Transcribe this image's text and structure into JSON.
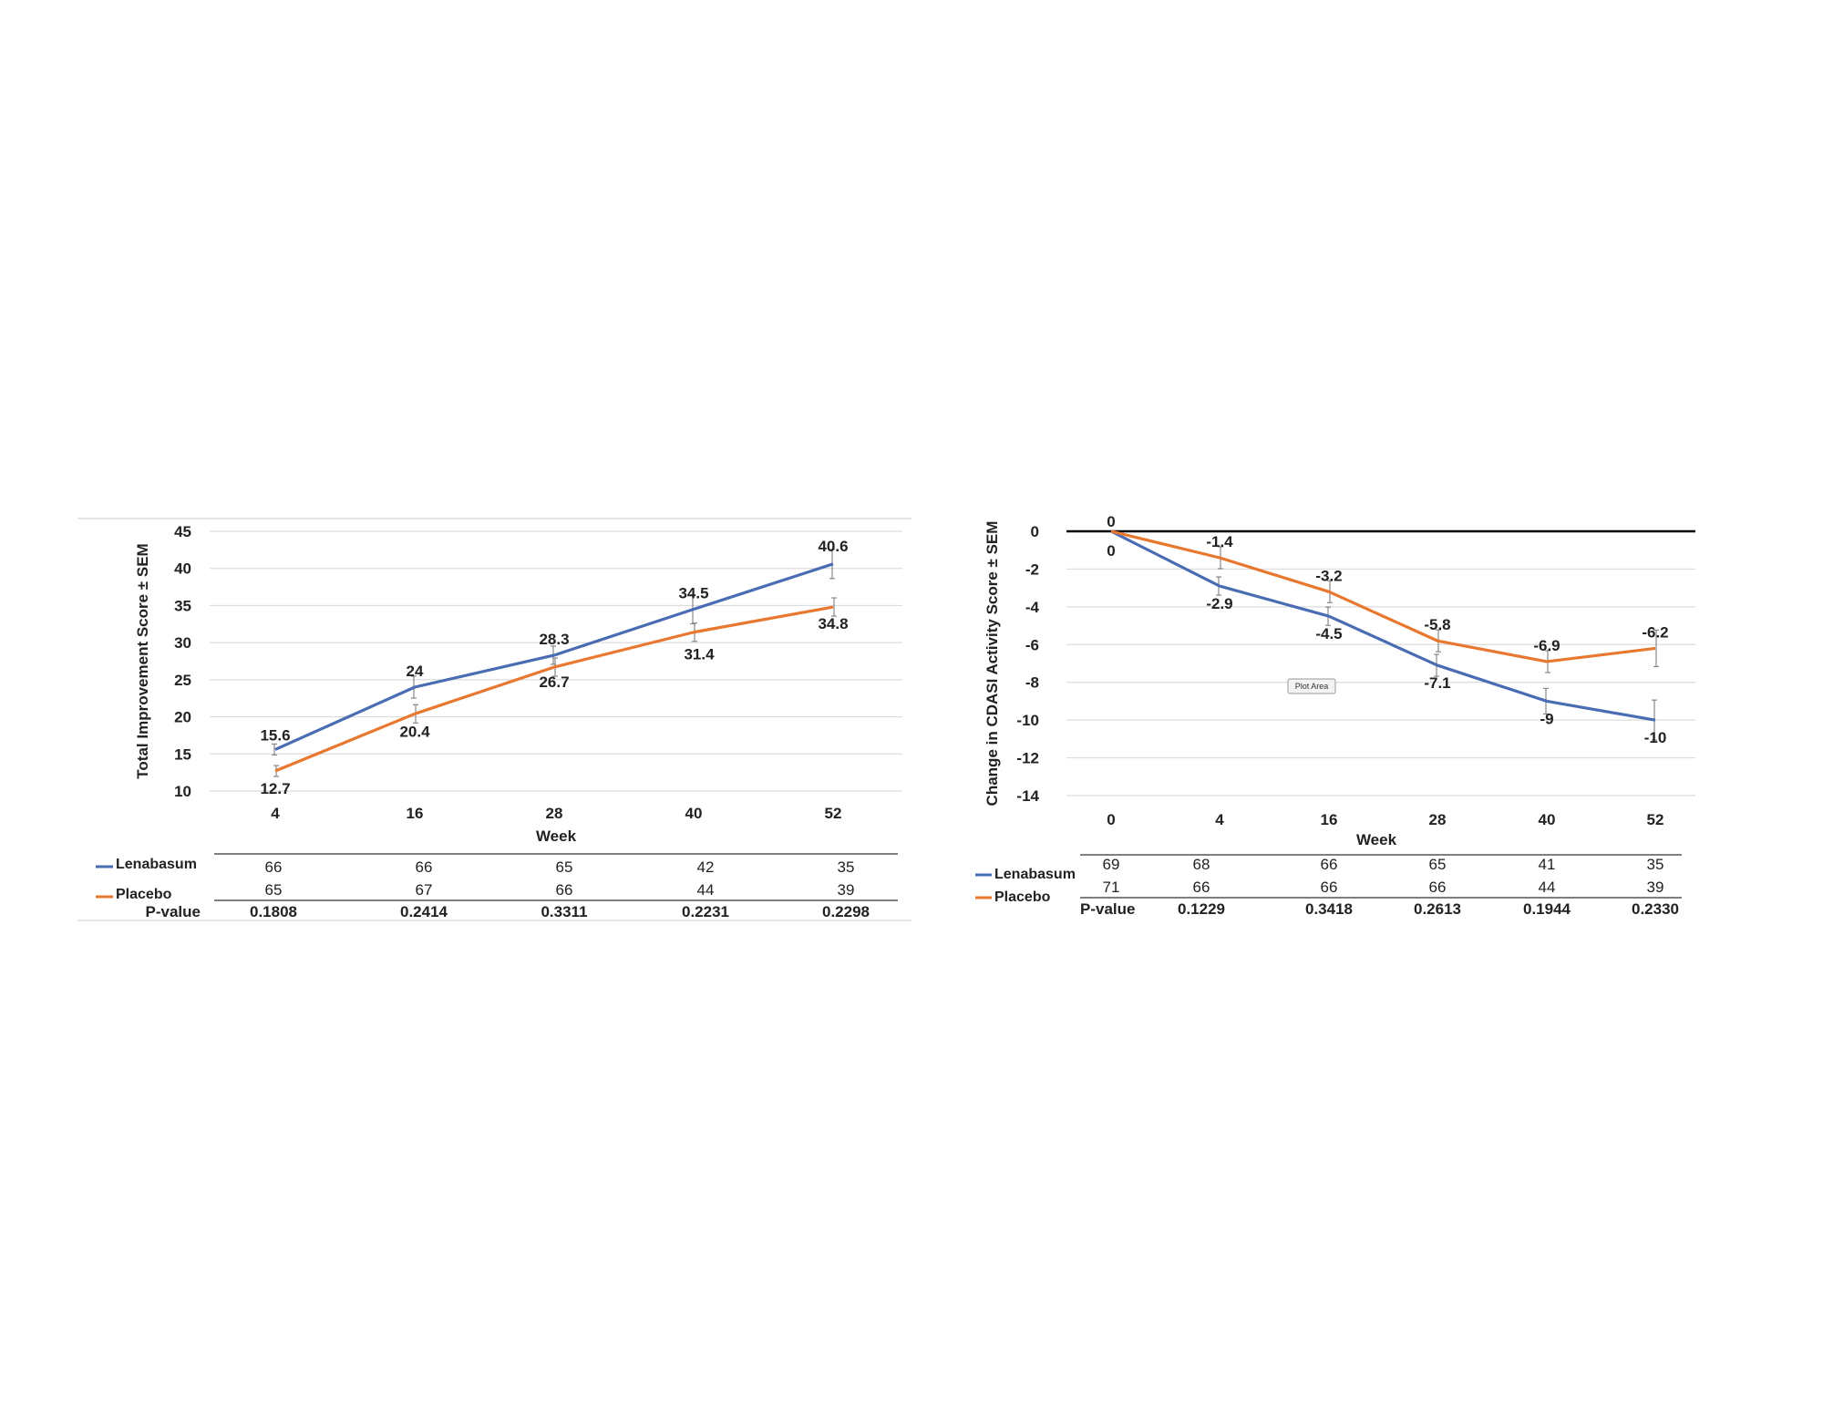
{
  "chart_data": [
    {
      "type": "line",
      "ylabel": "Total Improvement Score ± SEM",
      "xlabel": "Week",
      "categories": [
        "4",
        "16",
        "28",
        "40",
        "52"
      ],
      "ylim": [
        10,
        45
      ],
      "yticks": [
        10,
        15,
        20,
        25,
        30,
        35,
        40,
        45
      ],
      "grid": true,
      "series": [
        {
          "name": "Lenabasum",
          "color": "#4a6cb3",
          "values": [
            15.6,
            24,
            28.3,
            34.5,
            40.6
          ]
        },
        {
          "name": "Placebo",
          "color": "#e8782f",
          "values": [
            12.7,
            20.4,
            26.7,
            31.4,
            34.8
          ]
        }
      ],
      "table": {
        "rows": [
          {
            "label": "Lenabasum",
            "values": [
              "66",
              "66",
              "65",
              "42",
              "35"
            ]
          },
          {
            "label": "Placebo",
            "values": [
              "65",
              "67",
              "66",
              "44",
              "39"
            ]
          }
        ],
        "pvalue_label": "P-value",
        "pvalues": [
          "0.1808",
          "0.2414",
          "0.3311",
          "0.2231",
          "0.2298"
        ]
      }
    },
    {
      "type": "line",
      "ylabel": "Change in CDASI Activity Score ± SEM",
      "xlabel": "Week",
      "categories": [
        "0",
        "4",
        "16",
        "28",
        "40",
        "52"
      ],
      "ylim": [
        -14,
        0
      ],
      "yticks": [
        0,
        -2,
        -4,
        -6,
        -8,
        -10,
        -12,
        -14
      ],
      "grid": true,
      "series": [
        {
          "name": "Lenabasum",
          "color": "#4a6cb3",
          "values": [
            0,
            -2.9,
            -4.5,
            -7.1,
            -9,
            -10
          ]
        },
        {
          "name": "Placebo",
          "color": "#e8782f",
          "values": [
            0,
            -1.4,
            -3.2,
            -5.8,
            -6.9,
            -6.2
          ]
        }
      ],
      "table": {
        "rows": [
          {
            "label": "Lenabasum",
            "values": [
              "69",
              "68",
              "66",
              "65",
              "41",
              "35"
            ]
          },
          {
            "label": "Placebo",
            "values": [
              "71",
              "66",
              "66",
              "66",
              "44",
              "39"
            ]
          }
        ],
        "pvalue_label": "P-value",
        "pvalues": [
          "",
          "0.1229",
          "0.3418",
          "0.2613",
          "0.1944",
          "0.2330"
        ]
      },
      "tooltip": "Plot Area"
    }
  ]
}
